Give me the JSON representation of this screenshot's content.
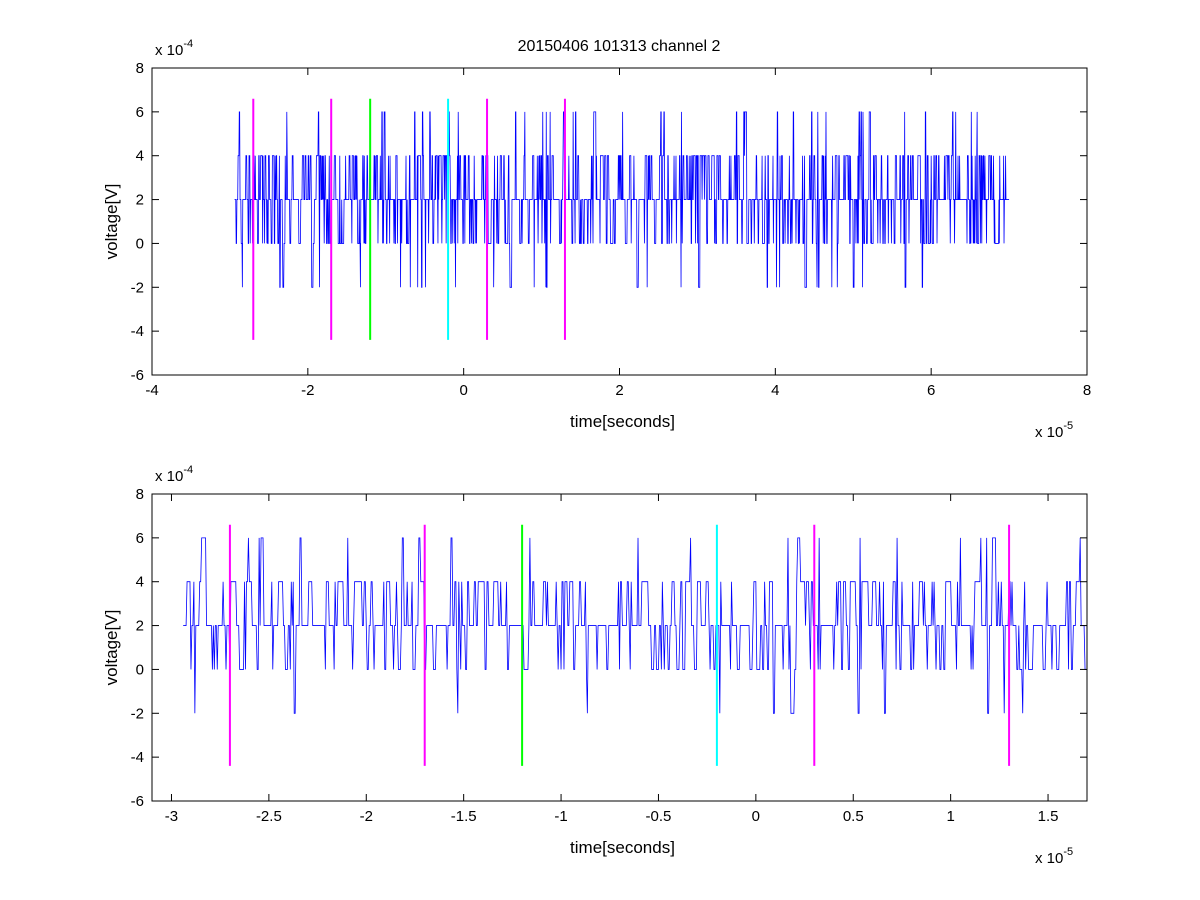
{
  "figure": {
    "title": "20150406 101313 channel 2"
  },
  "chart_data": [
    {
      "type": "line",
      "title": "20150406 101313 channel 2",
      "xlabel": "time[seconds]",
      "ylabel": "voltage[V]",
      "x_multiplier": "x 10",
      "x_exponent": "-5",
      "y_multiplier": "x 10",
      "y_exponent": "-4",
      "xlim": [
        -4e-05,
        8e-05
      ],
      "ylim": [
        -0.0006,
        0.0008
      ],
      "x_ticks": [
        -4e-05,
        -2e-05,
        0,
        2e-05,
        4e-05,
        6e-05,
        8e-05
      ],
      "x_tick_labels": [
        "-4",
        "-2",
        "0",
        "2",
        "4",
        "6",
        "8"
      ],
      "y_ticks": [
        -0.0006,
        -0.0004,
        -0.0002,
        0,
        0.0002,
        0.0004,
        0.0006,
        0.0008
      ],
      "y_tick_labels": [
        "-6",
        "-4",
        "-2",
        "0",
        "2",
        "4",
        "6",
        "8"
      ],
      "grid": false,
      "signal": {
        "color": "#0000ff",
        "x_start": -2.94e-05,
        "x_end": 7e-05,
        "sample_interval": 5e-08,
        "levels": [
          -0.0004,
          -0.0002,
          0,
          0.0002,
          0.0004,
          0.0006
        ]
      },
      "markers": [
        {
          "x": -2.7e-05,
          "y_bottom": -0.00044,
          "y_top": 0.00066,
          "color": "#ff00ff"
        },
        {
          "x": -1.7e-05,
          "y_bottom": -0.00044,
          "y_top": 0.00066,
          "color": "#ff00ff"
        },
        {
          "x": -1.2e-05,
          "y_bottom": -0.00044,
          "y_top": 0.00066,
          "color": "#00ff00"
        },
        {
          "x": -2e-06,
          "y_bottom": -0.00044,
          "y_top": 0.00066,
          "color": "#00ffff"
        },
        {
          "x": 3e-06,
          "y_bottom": -0.00044,
          "y_top": 0.00066,
          "color": "#ff00ff"
        },
        {
          "x": 1.3e-05,
          "y_bottom": -0.00044,
          "y_top": 0.00066,
          "color": "#ff00ff"
        }
      ]
    },
    {
      "type": "line",
      "title": "",
      "xlabel": "time[seconds]",
      "ylabel": "voltage[V]",
      "x_multiplier": "x 10",
      "x_exponent": "-5",
      "y_multiplier": "x 10",
      "y_exponent": "-4",
      "xlim": [
        -3.1e-05,
        1.7e-05
      ],
      "ylim": [
        -0.0006,
        0.0008
      ],
      "x_ticks": [
        -3e-05,
        -2.5e-05,
        -2e-05,
        -1.5e-05,
        -1e-05,
        -5e-06,
        0,
        5e-06,
        1e-05,
        1.5e-05
      ],
      "x_tick_labels": [
        "-3",
        "-2.5",
        "-2",
        "-1.5",
        "-1",
        "-0.5",
        "0",
        "0.5",
        "1",
        "1.5"
      ],
      "y_ticks": [
        -0.0006,
        -0.0004,
        -0.0002,
        0,
        0.0002,
        0.0004,
        0.0006,
        0.0008
      ],
      "y_tick_labels": [
        "-6",
        "-4",
        "-2",
        "0",
        "2",
        "4",
        "6",
        "8"
      ],
      "grid": false,
      "signal": {
        "color": "#0000ff",
        "x_start": -2.94e-05,
        "x_end": 1.7e-05,
        "sample_interval": 5e-08,
        "levels": [
          -0.0002,
          0,
          0.0002,
          0.0004,
          0.0006
        ]
      },
      "markers": [
        {
          "x": -2.7e-05,
          "y_bottom": -0.00044,
          "y_top": 0.00066,
          "color": "#ff00ff"
        },
        {
          "x": -1.7e-05,
          "y_bottom": -0.00044,
          "y_top": 0.00066,
          "color": "#ff00ff"
        },
        {
          "x": -1.2e-05,
          "y_bottom": -0.00044,
          "y_top": 0.00066,
          "color": "#00ff00"
        },
        {
          "x": -2e-06,
          "y_bottom": -0.00044,
          "y_top": 0.00066,
          "color": "#00ffff"
        },
        {
          "x": 3e-06,
          "y_bottom": -0.00044,
          "y_top": 0.00066,
          "color": "#ff00ff"
        },
        {
          "x": 1.3e-05,
          "y_bottom": -0.00044,
          "y_top": 0.00066,
          "color": "#ff00ff"
        }
      ]
    }
  ]
}
